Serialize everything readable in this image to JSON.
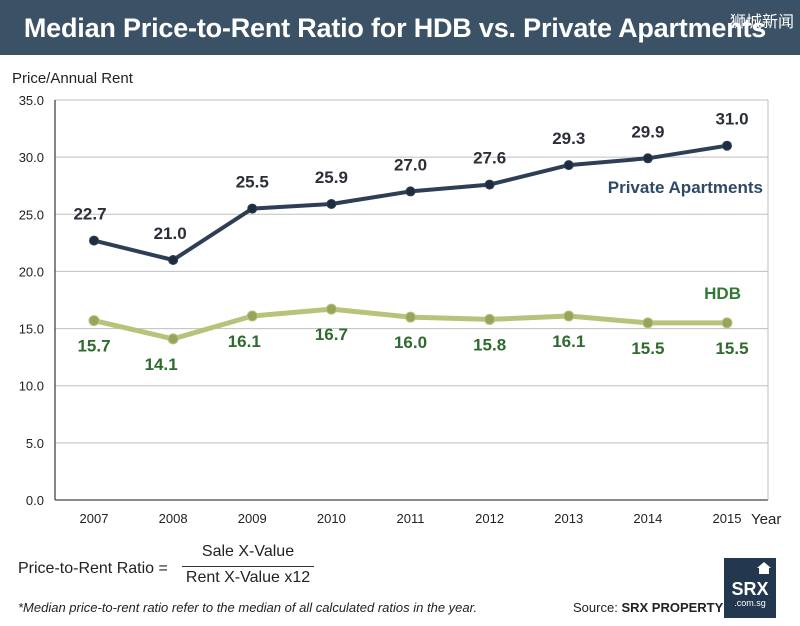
{
  "header": {
    "title": "Median Price-to-Rent Ratio for HDB vs. Private Apartments",
    "watermark": "狮城新闻"
  },
  "chart_data": {
    "type": "line",
    "title": "Median Price-to-Rent Ratio for HDB vs. Private Apartments",
    "xlabel": "Year",
    "ylabel": "Price/Annual Rent",
    "x": [
      "2007",
      "2008",
      "2009",
      "2010",
      "2011",
      "2012",
      "2013",
      "2014",
      "2015"
    ],
    "ylim": [
      0,
      35
    ],
    "yticks": [
      "0.0",
      "5.0",
      "10.0",
      "15.0",
      "20.0",
      "25.0",
      "30.0",
      "35.0"
    ],
    "grid": true,
    "series": [
      {
        "name": "Private Apartments",
        "values": [
          22.7,
          21.0,
          25.5,
          25.9,
          27.0,
          27.6,
          29.3,
          29.9,
          31.0
        ],
        "labels": [
          "22.7",
          "21.0",
          "25.5",
          "25.9",
          "27.0",
          "27.6",
          "29.3",
          "29.9",
          "31.0"
        ],
        "color": "#2d3e55",
        "label_color": "#2b2f38"
      },
      {
        "name": "HDB",
        "values": [
          15.7,
          14.1,
          16.1,
          16.7,
          16.0,
          15.8,
          16.1,
          15.5,
          15.5
        ],
        "labels": [
          "15.7",
          "14.1",
          "16.1",
          "16.7",
          "16.0",
          "15.8",
          "16.1",
          "15.5",
          "15.5"
        ],
        "color": "#b8c27a",
        "label_color": "#2f6a2f"
      }
    ]
  },
  "footer": {
    "formula_label": "Price-to-Rent Ratio =",
    "numerator": "Sale X-Value",
    "denominator": "Rent X-Value x12",
    "footnote": "*Median price-to-rent ratio refer to the median of all calculated ratios in the year.",
    "source_prefix": "Source:",
    "source_name": "SRX PROPERTY",
    "logo_text": "SRX",
    "logo_sub": ".com.sg",
    "logo_icon": "house-icon"
  }
}
